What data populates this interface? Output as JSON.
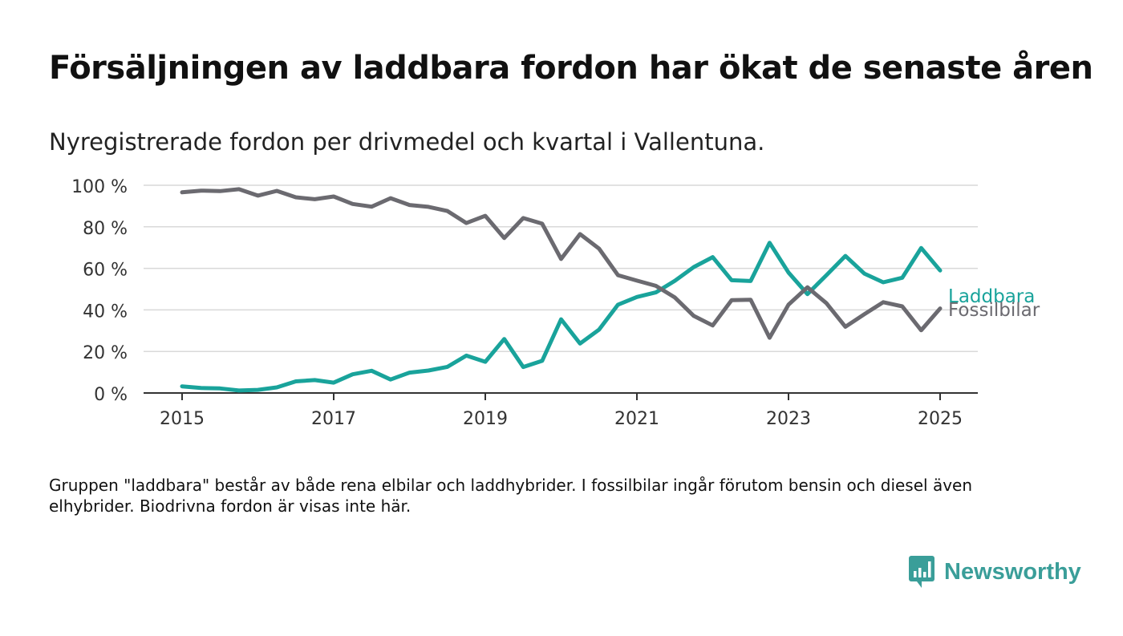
{
  "title": "Försäljningen av laddbara fordon har ökat de senaste åren",
  "subtitle": "Nyregistrerade fordon per drivmedel och kvartal i Vallentuna.",
  "note": "Gruppen \"laddbara\" består av både rena elbilar och laddhybrider. I fossilbilar ingår förutom bensin och diesel även elhybrider. Biodrivna fordon är visas inte här.",
  "brand": {
    "name": "Newsworthy",
    "icon": "newsworthy-logo-icon",
    "color": "#3a9e99"
  },
  "chart_data": {
    "type": "line",
    "xlim": [
      2014.75,
      2025.5
    ],
    "ylim": [
      0,
      100
    ],
    "y_ticks": [
      0,
      20,
      40,
      60,
      80,
      100
    ],
    "y_tick_labels": [
      "0 %",
      "20 %",
      "40 %",
      "60 %",
      "80 %",
      "100 %"
    ],
    "x_ticks": [
      2015,
      2017,
      2019,
      2021,
      2023,
      2025
    ],
    "x_tick_labels": [
      "2015",
      "2017",
      "2019",
      "2021",
      "2023",
      "2025"
    ],
    "grid": true,
    "legend": "inline-right",
    "x": [
      2015.0,
      2015.25,
      2015.5,
      2015.75,
      2016.0,
      2016.25,
      2016.5,
      2016.75,
      2017.0,
      2017.25,
      2017.5,
      2017.75,
      2018.0,
      2018.25,
      2018.5,
      2018.75,
      2019.0,
      2019.25,
      2019.5,
      2019.75,
      2020.0,
      2020.25,
      2020.5,
      2020.75,
      2021.0,
      2021.25,
      2021.5,
      2021.75,
      2022.0,
      2022.25,
      2022.5,
      2022.75,
      2023.0,
      2023.25,
      2023.5,
      2023.75,
      2024.0,
      2024.25,
      2024.5,
      2024.75,
      2025.0
    ],
    "series": [
      {
        "name": "Laddbara",
        "color": "#19a39b",
        "values": [
          3.2,
          2.4,
          2.2,
          1.2,
          1.5,
          2.7,
          5.6,
          6.2,
          5.0,
          9.0,
          10.7,
          6.5,
          9.8,
          10.8,
          12.6,
          18.0,
          15.0,
          26.0,
          12.5,
          15.5,
          35.5,
          23.8,
          30.5,
          42.5,
          46.2,
          48.4,
          54.0,
          60.6,
          65.4,
          54.3,
          53.9,
          72.3,
          58.0,
          47.6,
          56.7,
          66.0,
          57.5,
          53.3,
          55.5,
          69.8,
          59.0
        ]
      },
      {
        "name": "Fossilbilar",
        "color": "#6b6a70",
        "values": [
          96.6,
          97.4,
          97.2,
          98.1,
          95.0,
          97.3,
          94.2,
          93.3,
          94.6,
          91.0,
          89.7,
          93.8,
          90.5,
          89.6,
          87.6,
          81.8,
          85.3,
          74.6,
          84.2,
          81.5,
          64.5,
          76.5,
          69.5,
          56.7,
          54.1,
          51.6,
          46.0,
          37.1,
          32.5,
          44.7,
          44.9,
          26.6,
          42.5,
          50.9,
          43.2,
          31.9,
          37.9,
          43.7,
          41.7,
          30.2,
          40.7
        ]
      }
    ]
  }
}
